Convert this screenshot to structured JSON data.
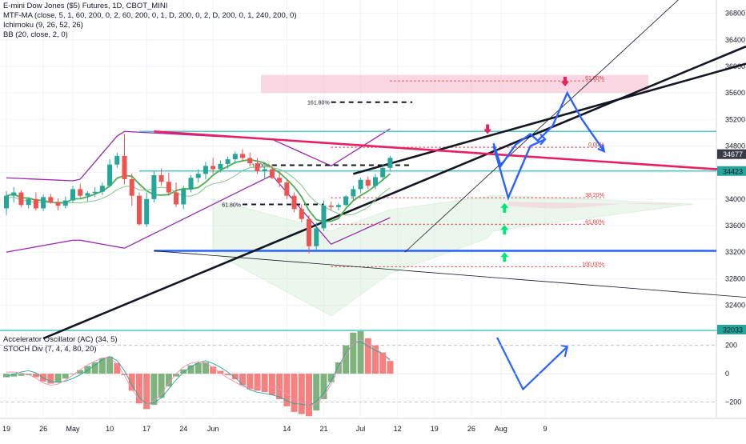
{
  "chart_data": [
    {
      "type": "candlestick",
      "title": "E-mini Dow Jones ($5) Futures, 1D, CBOT_MINI",
      "indicators": [
        "MTF-MA (close, 5, 1, 60, 200, 0, 2, 60, 200, 0, 1, D, 200, 0, 2, D, 200, 0, 1, 240, 200, 0)",
        "Ichimoku (9, 26, 52, 26)",
        "BB (20, close, 2, 0)"
      ],
      "y_axis": {
        "ticks": [
          32400,
          32800,
          33200,
          33600,
          34000,
          34400,
          34800,
          35200,
          35600,
          36000,
          36400,
          36800
        ],
        "tick_labels": [
          "32400",
          "32800",
          "33200",
          "33600",
          "34000",
          "34400",
          "34800",
          "35200",
          "35600",
          "36000",
          "36400",
          "36800"
        ],
        "ylim": [
          32033,
          37000
        ]
      },
      "price_labels": [
        {
          "text": "34677",
          "value": 34677,
          "bg": "#363a45",
          "fg": "#ffffff"
        },
        {
          "text": "34423",
          "value": 34423,
          "bg": "#26a69a",
          "fg": "#131722"
        },
        {
          "text": "32033",
          "value": 32033,
          "bg": "#26a69a",
          "fg": "#131722"
        }
      ],
      "x_axis": {
        "ticks": [
          "19",
          "26",
          "May",
          "10",
          "17",
          "24",
          "Jun",
          "14",
          "21",
          "Jul",
          "12",
          "19",
          "26",
          "Aug",
          "9"
        ],
        "tick_bar_index": [
          0,
          5,
          9,
          14,
          19,
          24,
          28,
          38,
          43,
          48,
          53,
          58,
          63,
          67,
          73
        ]
      },
      "candles": [
        {
          "o": 33860,
          "h": 34120,
          "l": 33760,
          "c": 34050
        },
        {
          "o": 34050,
          "h": 34180,
          "l": 33950,
          "c": 34100
        },
        {
          "o": 34100,
          "h": 34130,
          "l": 33880,
          "c": 33910
        },
        {
          "o": 33910,
          "h": 34030,
          "l": 33860,
          "c": 34000
        },
        {
          "o": 34000,
          "h": 34100,
          "l": 33830,
          "c": 33860
        },
        {
          "o": 33860,
          "h": 34070,
          "l": 33820,
          "c": 34030
        },
        {
          "o": 34030,
          "h": 34080,
          "l": 33930,
          "c": 33950
        },
        {
          "o": 33950,
          "h": 34010,
          "l": 33830,
          "c": 33900
        },
        {
          "o": 33900,
          "h": 34040,
          "l": 33860,
          "c": 33980
        },
        {
          "o": 33980,
          "h": 34200,
          "l": 33950,
          "c": 34150
        },
        {
          "o": 34150,
          "h": 34230,
          "l": 34020,
          "c": 34050
        },
        {
          "o": 34050,
          "h": 34120,
          "l": 33970,
          "c": 34090
        },
        {
          "o": 34090,
          "h": 34180,
          "l": 34030,
          "c": 34110
        },
        {
          "o": 34110,
          "h": 34250,
          "l": 34060,
          "c": 34200
        },
        {
          "o": 34200,
          "h": 34600,
          "l": 34190,
          "c": 34520
        },
        {
          "o": 34520,
          "h": 34700,
          "l": 34470,
          "c": 34650
        },
        {
          "o": 34650,
          "h": 34980,
          "l": 34220,
          "c": 34300
        },
        {
          "o": 34300,
          "h": 34380,
          "l": 33900,
          "c": 34050
        },
        {
          "o": 34050,
          "h": 34100,
          "l": 33600,
          "c": 33620
        },
        {
          "o": 33620,
          "h": 34100,
          "l": 33580,
          "c": 34000
        },
        {
          "o": 34000,
          "h": 34420,
          "l": 33950,
          "c": 34360
        },
        {
          "o": 34360,
          "h": 34460,
          "l": 34200,
          "c": 34260
        },
        {
          "o": 34260,
          "h": 34400,
          "l": 34050,
          "c": 34100
        },
        {
          "o": 34100,
          "h": 34250,
          "l": 33880,
          "c": 33920
        },
        {
          "o": 33920,
          "h": 34200,
          "l": 33850,
          "c": 34150
        },
        {
          "o": 34150,
          "h": 34360,
          "l": 34100,
          "c": 34320
        },
        {
          "o": 34320,
          "h": 34450,
          "l": 34250,
          "c": 34380
        },
        {
          "o": 34380,
          "h": 34560,
          "l": 34300,
          "c": 34500
        },
        {
          "o": 34500,
          "h": 34620,
          "l": 34380,
          "c": 34450
        },
        {
          "o": 34450,
          "h": 34580,
          "l": 34400,
          "c": 34530
        },
        {
          "o": 34530,
          "h": 34640,
          "l": 34460,
          "c": 34600
        },
        {
          "o": 34600,
          "h": 34720,
          "l": 34530,
          "c": 34680
        },
        {
          "o": 34680,
          "h": 34750,
          "l": 34570,
          "c": 34620
        },
        {
          "o": 34620,
          "h": 34700,
          "l": 34490,
          "c": 34540
        },
        {
          "o": 34540,
          "h": 34620,
          "l": 34380,
          "c": 34420
        },
        {
          "o": 34420,
          "h": 34500,
          "l": 34300,
          "c": 34450
        },
        {
          "o": 34450,
          "h": 34520,
          "l": 34300,
          "c": 34320
        },
        {
          "o": 34320,
          "h": 34420,
          "l": 34180,
          "c": 34250
        },
        {
          "o": 34250,
          "h": 34300,
          "l": 34000,
          "c": 34050
        },
        {
          "o": 34050,
          "h": 34100,
          "l": 33800,
          "c": 33850
        },
        {
          "o": 33850,
          "h": 33920,
          "l": 33650,
          "c": 33700
        },
        {
          "o": 33700,
          "h": 33760,
          "l": 33180,
          "c": 33290
        },
        {
          "o": 33290,
          "h": 33650,
          "l": 33220,
          "c": 33560
        },
        {
          "o": 33560,
          "h": 33980,
          "l": 33520,
          "c": 33900
        },
        {
          "o": 33900,
          "h": 33960,
          "l": 33830,
          "c": 33880
        },
        {
          "o": 33880,
          "h": 33940,
          "l": 33830,
          "c": 33910
        },
        {
          "o": 33910,
          "h": 34060,
          "l": 33890,
          "c": 34040
        },
        {
          "o": 34040,
          "h": 34200,
          "l": 33990,
          "c": 34150
        },
        {
          "o": 34150,
          "h": 34320,
          "l": 34090,
          "c": 34290
        },
        {
          "o": 34290,
          "h": 34340,
          "l": 34150,
          "c": 34200
        },
        {
          "o": 34200,
          "h": 34380,
          "l": 34150,
          "c": 34330
        },
        {
          "o": 34330,
          "h": 34520,
          "l": 34280,
          "c": 34470
        },
        {
          "o": 34470,
          "h": 34650,
          "l": 34430,
          "c": 34620
        }
      ],
      "ac_panel": {
        "title": "Accelerator Oscillator (AC) (34, 5)",
        "stoch_title": "STOCH Div (7, 4, 4, 80, 20)",
        "ticks": [
          200,
          0,
          -200
        ],
        "tick_labels": [
          "200",
          "0",
          "−200"
        ],
        "ylim": [
          -310,
          300
        ],
        "values": [
          -25,
          -20,
          -15,
          -10,
          -25,
          -55,
          -70,
          -60,
          -35,
          -5,
          25,
          55,
          80,
          110,
          120,
          75,
          -10,
          -120,
          -210,
          -250,
          -220,
          -170,
          -90,
          -20,
          30,
          60,
          75,
          80,
          50,
          20,
          -10,
          -40,
          -80,
          -110,
          -120,
          -130,
          -150,
          -180,
          -230,
          -270,
          -285,
          -300,
          -260,
          -180,
          -60,
          80,
          200,
          290,
          300,
          250,
          200,
          150,
          90
        ],
        "up_color": "#7fb27d",
        "down_color": "#f5807e"
      },
      "fibonacci": [
        {
          "label": "61.00%",
          "value": 35780
        },
        {
          "label": "0.00%",
          "value": 34780
        },
        {
          "label": "38.20%",
          "value": 34020
        },
        {
          "label": "61.80%",
          "value": 33620
        },
        {
          "label": "100.00%",
          "value": 32980
        }
      ],
      "annotations": [
        {
          "label": "161.80%",
          "value": 35460
        },
        {
          "label": "10.00%",
          "value": 34510
        },
        {
          "label": "61.80%",
          "value": 33920
        }
      ],
      "horizontal_levels": [
        {
          "value": 35020,
          "color": "#4ec9c9"
        },
        {
          "value": 34423,
          "color": "#4ec9c9"
        },
        {
          "value": 33220,
          "color": "#2962ff"
        }
      ],
      "colors": {
        "up": "#26a69a",
        "down": "#ef5350",
        "bb": "#9c27b0",
        "ma": "#4caf50",
        "channel": "#131722",
        "redline": "#e91e63",
        "blue": "#2962ff",
        "cyan": "#4ec9c9",
        "zone": "#f8bbd0",
        "arrow_up": "#00e676",
        "arrow_down": "#e91e63",
        "cloud": "#c8e6c9"
      }
    }
  ]
}
